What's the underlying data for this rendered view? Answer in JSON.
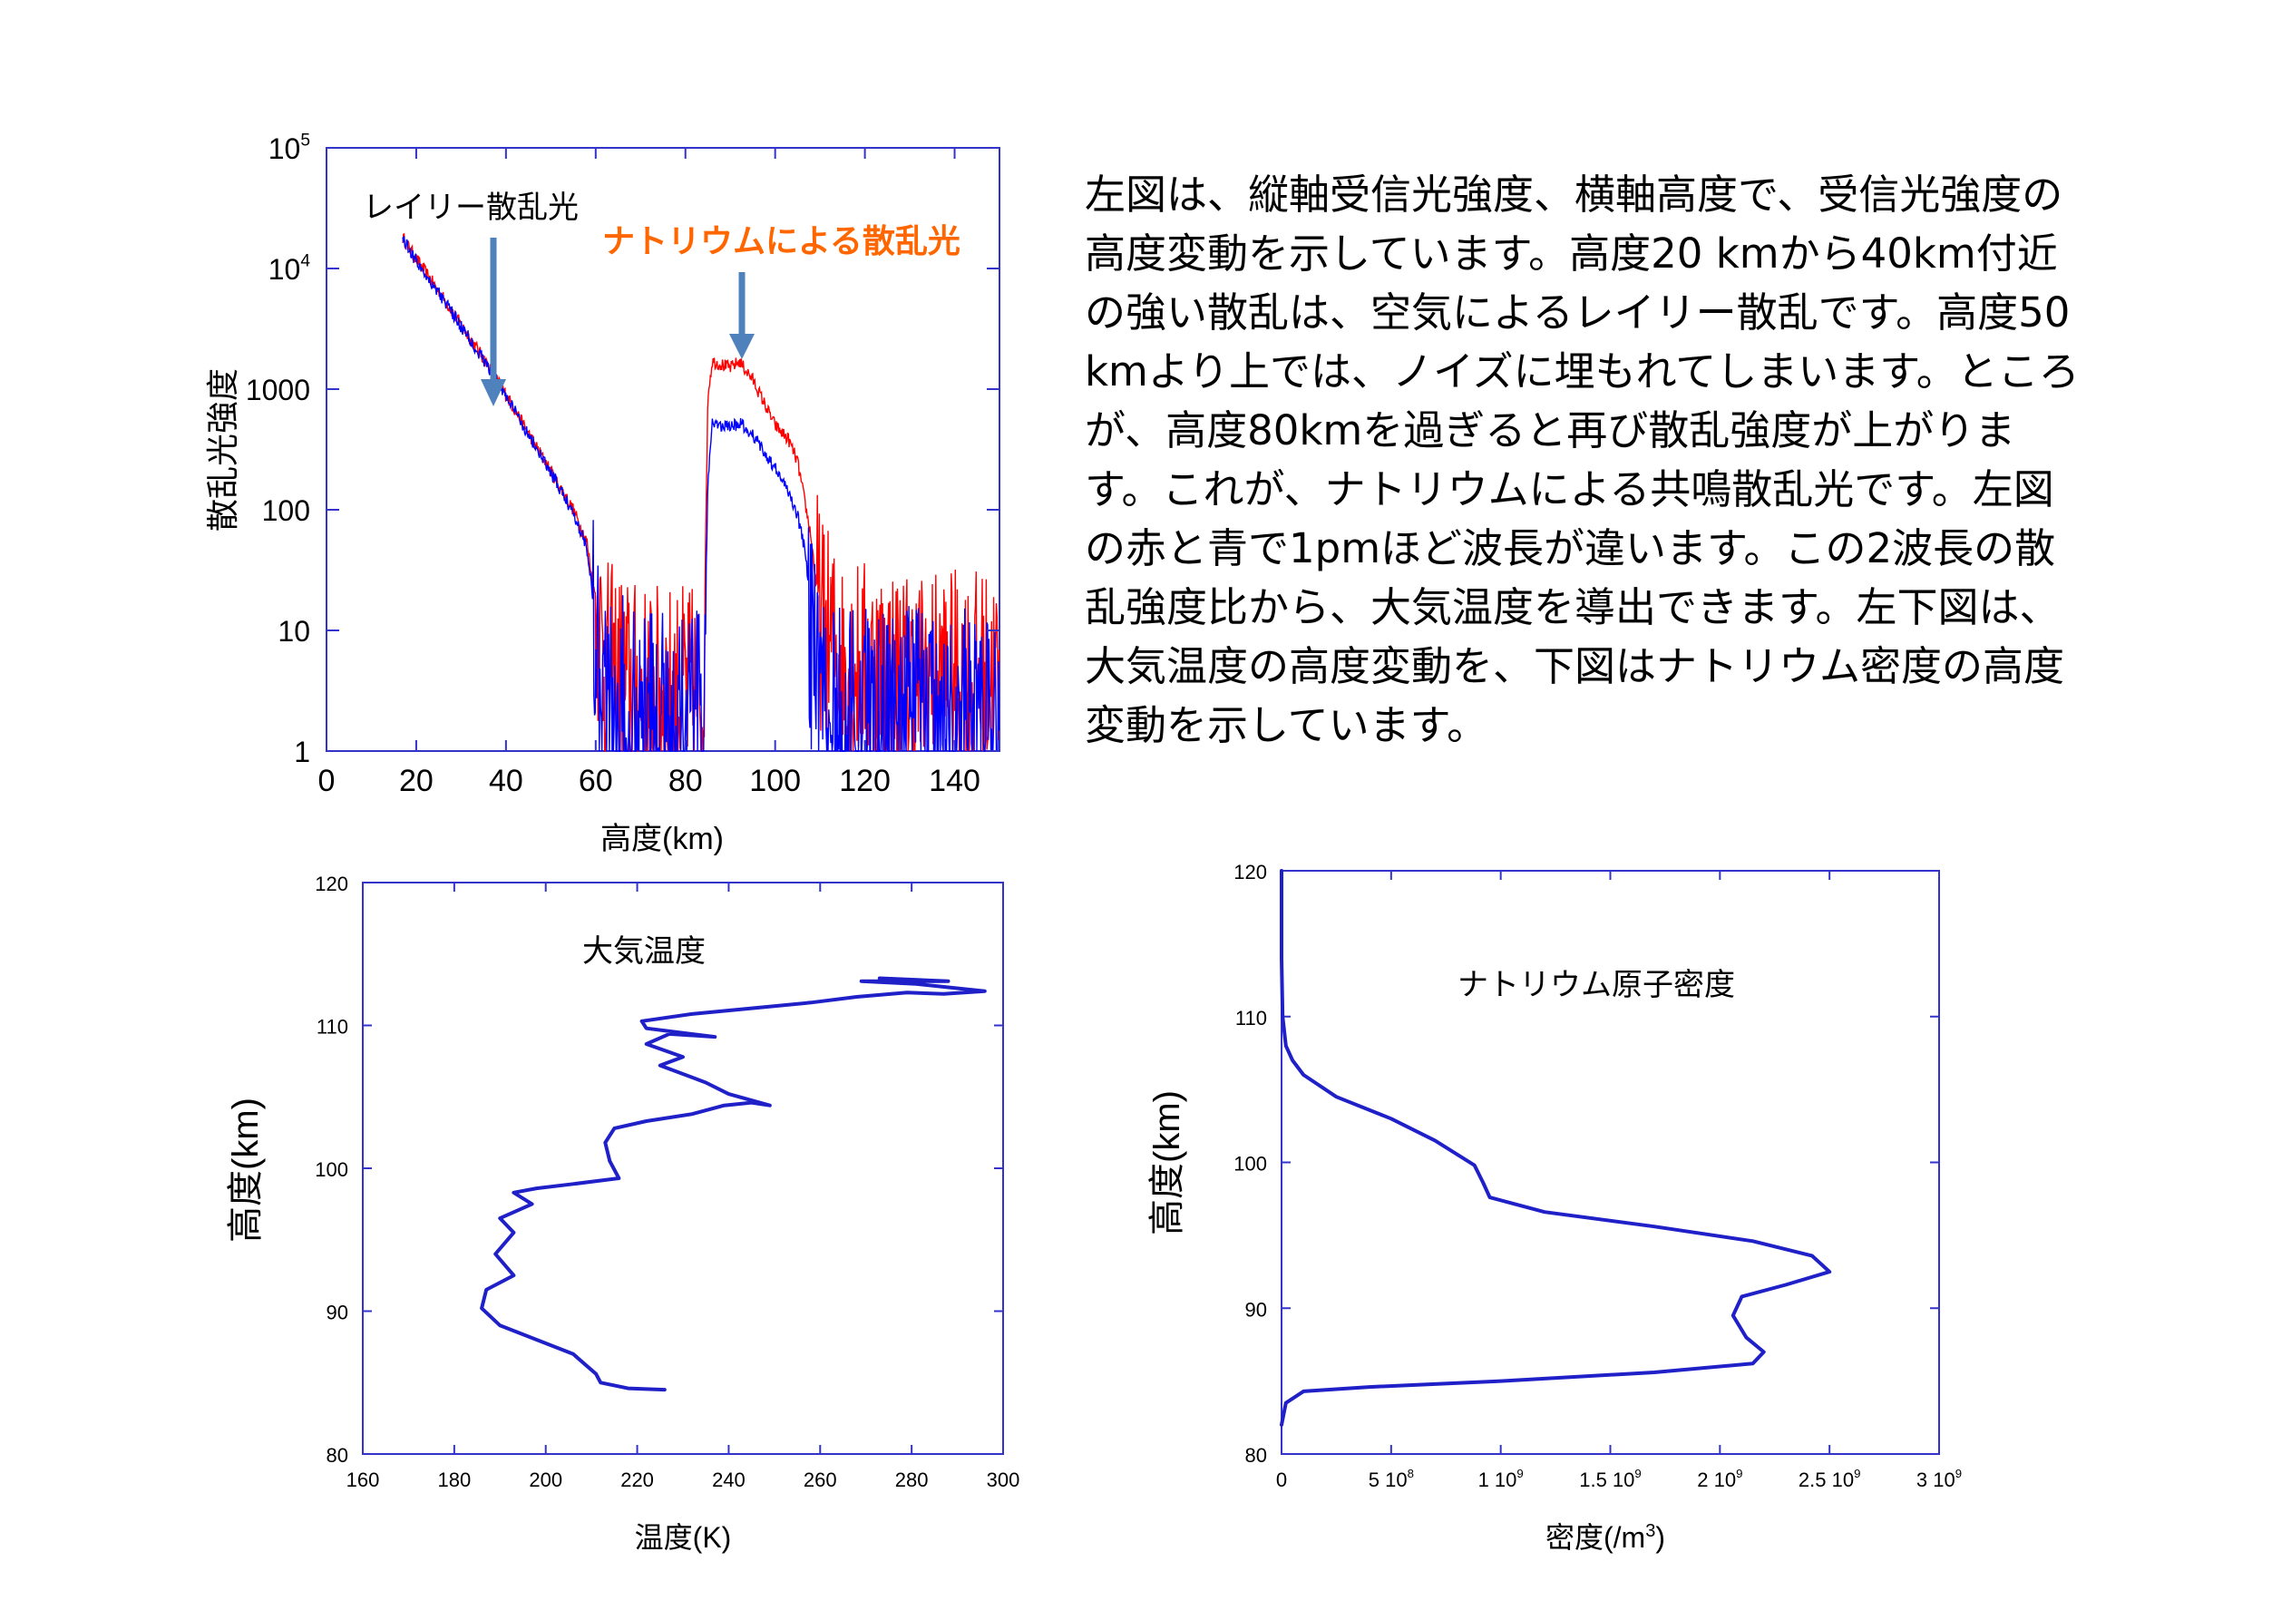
{
  "description": "左図は、縦軸受信光強度、横軸高度で、受信光強度の高度変動を示しています。高度20 kmから40km付近の強い散乱は、空気によるレイリー散乱です。高度50kmより上では、ノイズに埋もれてしまいます。ところが、高度80kmを過ぎると再び散乱強度が上がります。これが、ナトリウムによる共鳴散乱光です。左図の赤と青で1pmほど波長が違います。この2波長の散乱強度比から、大気温度を導出できます。左下図は、大気温度の高度変動を、下図はナトリウム密度の高度変動を示しています。",
  "chart_data": [
    {
      "type": "line",
      "title": "",
      "xlabel": "高度(km)",
      "ylabel": "散乱光強度",
      "xlim": [
        0,
        150
      ],
      "ylim": [
        1,
        100000
      ],
      "yscale": "log",
      "xticks": [
        "0",
        "20",
        "40",
        "60",
        "80",
        "100",
        "120",
        "140"
      ],
      "yticks": [
        "1",
        "10",
        "100",
        "1000",
        "10^4",
        "10^5"
      ],
      "series": [
        {
          "color": "#ff0000",
          "x": [
            17,
            20,
            25,
            30,
            35,
            40,
            45,
            50,
            55,
            58,
            62,
            70,
            80,
            84,
            85,
            86,
            88,
            90,
            92,
            95,
            100,
            103,
            105,
            108,
            110,
            115,
            120,
            130,
            140,
            150
          ],
          "y": [
            18000,
            12000,
            6500,
            3400,
            1800,
            900,
            430,
            210,
            100,
            55,
            5,
            3,
            3,
            3,
            900,
            1700,
            1600,
            1500,
            1700,
            1200,
            500,
            380,
            250,
            60,
            12,
            5,
            5,
            4,
            4,
            4
          ]
        },
        {
          "color": "#0000ff",
          "x": [
            17,
            20,
            25,
            30,
            35,
            40,
            45,
            50,
            55,
            58,
            62,
            70,
            80,
            84,
            85,
            86,
            88,
            90,
            92,
            95,
            100,
            103,
            105,
            107,
            108,
            110,
            115,
            120,
            130,
            140,
            150
          ],
          "y": [
            18000,
            11500,
            6300,
            3300,
            1750,
            880,
            420,
            200,
            95,
            50,
            3,
            2,
            2,
            2,
            150,
            550,
            500,
            480,
            520,
            420,
            220,
            140,
            90,
            40,
            8,
            2,
            2,
            2,
            2,
            2,
            2
          ]
        }
      ],
      "annotations": [
        {
          "text": "レイリー散乱光",
          "color": "#000000"
        },
        {
          "text": "ナトリウムによる散乱光",
          "color": "#ff6600"
        }
      ]
    },
    {
      "type": "line",
      "title": "大気温度",
      "xlabel": "温度(K)",
      "ylabel": "高度(km)",
      "xlim": [
        160,
        300
      ],
      "ylim": [
        80,
        120
      ],
      "xticks": [
        "160",
        "180",
        "200",
        "220",
        "240",
        "260",
        "280",
        "300"
      ],
      "yticks": [
        "80",
        "90",
        "100",
        "110",
        "120"
      ],
      "series": [
        {
          "color": "#2020c8",
          "x": [
            226,
            218,
            212,
            211,
            206,
            198,
            190,
            186,
            187,
            193,
            189,
            193,
            190,
            197,
            193,
            198,
            206,
            216,
            214,
            213,
            215,
            222,
            232,
            239,
            245,
            249,
            240,
            235,
            225,
            230,
            222,
            227,
            237,
            222,
            221,
            232,
            245,
            258,
            268,
            279,
            287,
            296,
            281,
            269,
            288,
            273
          ],
          "y": [
            84.5,
            84.6,
            85.0,
            85.6,
            87.0,
            88.0,
            89.0,
            90.2,
            91.5,
            92.5,
            94.0,
            95.5,
            96.5,
            97.5,
            98.3,
            98.6,
            98.9,
            99.3,
            100.5,
            101.8,
            102.8,
            103.3,
            103.8,
            104.4,
            104.6,
            104.4,
            105.2,
            106.0,
            107.2,
            107.8,
            108.7,
            109.4,
            109.2,
            109.8,
            110.3,
            110.8,
            111.2,
            111.6,
            112.0,
            112.3,
            112.2,
            112.4,
            112.9,
            113.1,
            113.1,
            113.3
          ]
        }
      ]
    },
    {
      "type": "line",
      "title": "ナトリウム原子密度",
      "xlabel": "密度(/m3)",
      "ylabel": "高度(km)",
      "xlim": [
        0,
        3000000000
      ],
      "ylim": [
        80,
        120
      ],
      "xticks": [
        "0",
        "5 10^8",
        "1 10^9",
        "1.5 10^9",
        "2 10^9",
        "2.5 10^9",
        "3 10^9"
      ],
      "yticks": [
        "80",
        "90",
        "100",
        "110",
        "120"
      ],
      "series": [
        {
          "color": "#2020c8",
          "x": [
            0,
            20000000,
            100000000,
            400000000,
            1000000000,
            1700000000,
            2150000000,
            2200000000,
            2120000000,
            2060000000,
            2100000000,
            2300000000,
            2500000000,
            2420000000,
            2150000000,
            1700000000,
            1200000000,
            950000000,
            920000000,
            880000000,
            700000000,
            500000000,
            250000000,
            100000000,
            50000000,
            20000000,
            5000000,
            0,
            0
          ],
          "y": [
            82.0,
            83.5,
            84.3,
            84.6,
            85.0,
            85.6,
            86.2,
            87.0,
            88.0,
            89.5,
            90.8,
            91.6,
            92.5,
            93.6,
            94.6,
            95.6,
            96.6,
            97.6,
            98.6,
            99.8,
            101.5,
            103.0,
            104.5,
            106.0,
            107.0,
            108.0,
            110.0,
            114.0,
            120.0
          ]
        }
      ]
    }
  ]
}
